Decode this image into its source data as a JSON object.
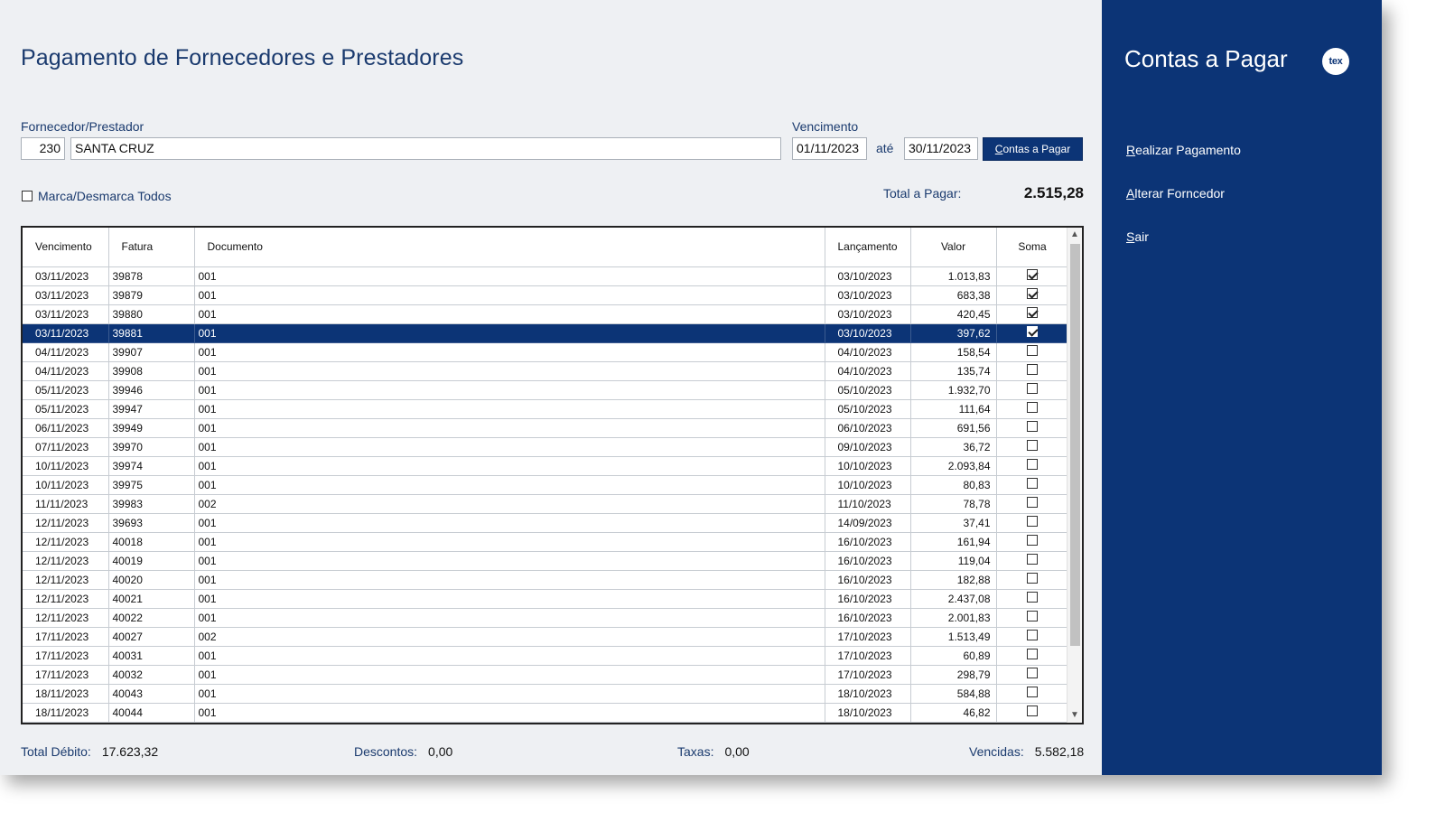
{
  "window": {
    "title": "Pagamento de Fornecedores e Prestadores"
  },
  "filters": {
    "supplier_label": "Fornecedor/Prestador",
    "supplier_code": "230",
    "supplier_name": "SANTA CRUZ",
    "due_label": "Vencimento",
    "due_from": "01/11/2023",
    "between": "até",
    "due_to": "30/11/2023",
    "button_label_underlined": "C",
    "button_label_rest": "ontas a Pagar"
  },
  "select_all_label": "Marca/Desmarca Todos",
  "total_to_pay": {
    "label": "Total a Pagar:",
    "value": "2.515,28"
  },
  "table": {
    "columns": [
      "Vencimento",
      "Fatura",
      "Documento",
      "Lançamento",
      "Valor",
      "Soma"
    ],
    "rows": [
      {
        "vencimento": "03/11/2023",
        "fatura": "39878",
        "documento": "001",
        "lancamento": "03/10/2023",
        "valor": "1.013,83",
        "soma": true
      },
      {
        "vencimento": "03/11/2023",
        "fatura": "39879",
        "documento": "001",
        "lancamento": "03/10/2023",
        "valor": "683,38",
        "soma": true
      },
      {
        "vencimento": "03/11/2023",
        "fatura": "39880",
        "documento": "001",
        "lancamento": "03/10/2023",
        "valor": "420,45",
        "soma": true
      },
      {
        "vencimento": "03/11/2023",
        "fatura": "39881",
        "documento": "001",
        "lancamento": "03/10/2023",
        "valor": "397,62",
        "soma": true,
        "selected": true
      },
      {
        "vencimento": "04/11/2023",
        "fatura": "39907",
        "documento": "001",
        "lancamento": "04/10/2023",
        "valor": "158,54",
        "soma": false
      },
      {
        "vencimento": "04/11/2023",
        "fatura": "39908",
        "documento": "001",
        "lancamento": "04/10/2023",
        "valor": "135,74",
        "soma": false
      },
      {
        "vencimento": "05/11/2023",
        "fatura": "39946",
        "documento": "001",
        "lancamento": "05/10/2023",
        "valor": "1.932,70",
        "soma": false
      },
      {
        "vencimento": "05/11/2023",
        "fatura": "39947",
        "documento": "001",
        "lancamento": "05/10/2023",
        "valor": "111,64",
        "soma": false
      },
      {
        "vencimento": "06/11/2023",
        "fatura": "39949",
        "documento": "001",
        "lancamento": "06/10/2023",
        "valor": "691,56",
        "soma": false
      },
      {
        "vencimento": "07/11/2023",
        "fatura": "39970",
        "documento": "001",
        "lancamento": "09/10/2023",
        "valor": "36,72",
        "soma": false
      },
      {
        "vencimento": "10/11/2023",
        "fatura": "39974",
        "documento": "001",
        "lancamento": "10/10/2023",
        "valor": "2.093,84",
        "soma": false
      },
      {
        "vencimento": "10/11/2023",
        "fatura": "39975",
        "documento": "001",
        "lancamento": "10/10/2023",
        "valor": "80,83",
        "soma": false
      },
      {
        "vencimento": "11/11/2023",
        "fatura": "39983",
        "documento": "002",
        "lancamento": "11/10/2023",
        "valor": "78,78",
        "soma": false
      },
      {
        "vencimento": "12/11/2023",
        "fatura": "39693",
        "documento": "001",
        "lancamento": "14/09/2023",
        "valor": "37,41",
        "soma": false
      },
      {
        "vencimento": "12/11/2023",
        "fatura": "40018",
        "documento": "001",
        "lancamento": "16/10/2023",
        "valor": "161,94",
        "soma": false
      },
      {
        "vencimento": "12/11/2023",
        "fatura": "40019",
        "documento": "001",
        "lancamento": "16/10/2023",
        "valor": "119,04",
        "soma": false
      },
      {
        "vencimento": "12/11/2023",
        "fatura": "40020",
        "documento": "001",
        "lancamento": "16/10/2023",
        "valor": "182,88",
        "soma": false
      },
      {
        "vencimento": "12/11/2023",
        "fatura": "40021",
        "documento": "001",
        "lancamento": "16/10/2023",
        "valor": "2.437,08",
        "soma": false
      },
      {
        "vencimento": "12/11/2023",
        "fatura": "40022",
        "documento": "001",
        "lancamento": "16/10/2023",
        "valor": "2.001,83",
        "soma": false
      },
      {
        "vencimento": "17/11/2023",
        "fatura": "40027",
        "documento": "002",
        "lancamento": "17/10/2023",
        "valor": "1.513,49",
        "soma": false
      },
      {
        "vencimento": "17/11/2023",
        "fatura": "40031",
        "documento": "001",
        "lancamento": "17/10/2023",
        "valor": "60,89",
        "soma": false
      },
      {
        "vencimento": "17/11/2023",
        "fatura": "40032",
        "documento": "001",
        "lancamento": "17/10/2023",
        "valor": "298,79",
        "soma": false
      },
      {
        "vencimento": "18/11/2023",
        "fatura": "40043",
        "documento": "001",
        "lancamento": "18/10/2023",
        "valor": "584,88",
        "soma": false
      },
      {
        "vencimento": "18/11/2023",
        "fatura": "40044",
        "documento": "001",
        "lancamento": "18/10/2023",
        "valor": "46,82",
        "soma": false
      }
    ]
  },
  "footer": {
    "total_debit_label": "Total Débito:",
    "total_debit": "17.623,32",
    "discounts_label": "Descontos:",
    "discounts": "0,00",
    "fees_label": "Taxas:",
    "fees": "0,00",
    "overdue_label": "Vencidas:",
    "overdue": "5.582,18"
  },
  "sidebar": {
    "title": "Contas a Pagar",
    "logo_text": "tex",
    "items": [
      {
        "u": "R",
        "rest": "ealizar Pagamento"
      },
      {
        "u": "A",
        "rest": "lterar Forncedor"
      },
      {
        "u": "S",
        "rest": "air"
      }
    ]
  },
  "icons": {
    "scroll_up": "chevron-up-icon",
    "scroll_down": "chevron-down-icon"
  },
  "colors": {
    "accent": "#0c3476",
    "label_text": "#1a3a6e",
    "background": "#eef0f3"
  }
}
